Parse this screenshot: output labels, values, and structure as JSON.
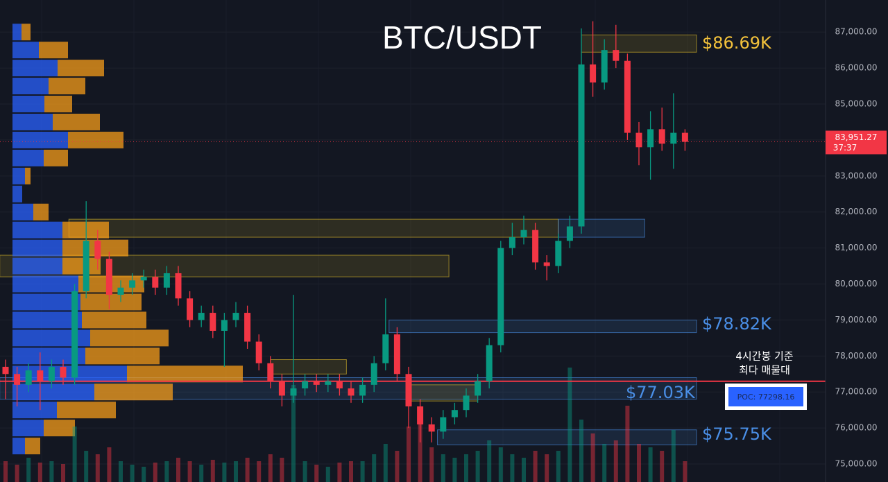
{
  "chart_data": {
    "type": "candlestick",
    "title": "BTC/USDT",
    "ylim": [
      74500,
      87890
    ],
    "yticks": [
      {
        "value": 75000,
        "label": "75,000.00"
      },
      {
        "value": 76000,
        "label": "76,000.00"
      },
      {
        "value": 77000,
        "label": "77,000.00"
      },
      {
        "value": 78000,
        "label": "78,000.00"
      },
      {
        "value": 79000,
        "label": "79,000.00"
      },
      {
        "value": 80000,
        "label": "80,000.00"
      },
      {
        "value": 81000,
        "label": "81,000.00"
      },
      {
        "value": 82000,
        "label": "82,000.00"
      },
      {
        "value": 83000,
        "label": "83,000.00"
      },
      {
        "value": 84000,
        "label": "84,000.00"
      },
      {
        "value": 85000,
        "label": "85,000.00"
      },
      {
        "value": 86000,
        "label": "86,000.00"
      },
      {
        "value": 87000,
        "label": "87,000.00"
      }
    ],
    "grid": true,
    "up_color": "#089981",
    "down_color": "#f23645",
    "open": [
      77700,
      77500,
      77200,
      77600,
      77300,
      77700,
      77400,
      79800,
      81200,
      80700,
      79700,
      79900,
      80100,
      80200,
      79900,
      80300,
      79600,
      79000,
      79200,
      78700,
      79000,
      79200,
      78400,
      77800,
      77300,
      76900,
      77100,
      77300,
      77200,
      77300,
      77100,
      76900,
      77200,
      77800,
      78600,
      77500,
      76600,
      76100,
      75900,
      76300,
      76500,
      76900,
      77300,
      78300,
      81000,
      81300,
      81500,
      80600,
      80500,
      81200,
      81600,
      86100,
      85600,
      86500,
      86200,
      84200,
      83800,
      84300,
      83900,
      84200
    ],
    "high": [
      77900,
      77700,
      77800,
      78100,
      77900,
      77900,
      80000,
      82300,
      81500,
      80900,
      80100,
      80300,
      80400,
      80400,
      80500,
      80500,
      79800,
      79400,
      79400,
      79200,
      79500,
      79400,
      78600,
      78000,
      77500,
      79700,
      77500,
      77500,
      77500,
      77500,
      77300,
      77400,
      78000,
      79600,
      78800,
      77700,
      76800,
      76300,
      76500,
      76700,
      77100,
      77500,
      78500,
      81200,
      81700,
      81900,
      81700,
      80800,
      81400,
      81900,
      87100,
      87300,
      86800,
      87200,
      86400,
      84500,
      84800,
      84900,
      85300,
      84300
    ],
    "low": [
      76800,
      76600,
      77000,
      76500,
      77100,
      77200,
      77200,
      79600,
      80400,
      79300,
      79500,
      79700,
      79900,
      79700,
      79700,
      79400,
      78800,
      78800,
      78500,
      77700,
      78800,
      78200,
      77600,
      77100,
      76600,
      76700,
      76900,
      77000,
      77000,
      76900,
      76700,
      76700,
      77000,
      77600,
      77300,
      76000,
      75600,
      75600,
      75700,
      76100,
      76300,
      76700,
      77100,
      78100,
      80800,
      81100,
      80400,
      80100,
      80300,
      81000,
      81400,
      85200,
      85400,
      86000,
      84000,
      83300,
      82900,
      83700,
      83200,
      83700
    ],
    "close": [
      77500,
      77200,
      77600,
      77300,
      77700,
      77400,
      79800,
      81200,
      80700,
      79700,
      79900,
      80100,
      80200,
      79900,
      80300,
      79600,
      79000,
      79200,
      78700,
      79000,
      79200,
      78400,
      77800,
      77300,
      76900,
      77100,
      77300,
      77200,
      77300,
      77100,
      76900,
      77200,
      77800,
      78600,
      77500,
      76600,
      76100,
      75900,
      76300,
      76500,
      76900,
      77300,
      78300,
      81000,
      81300,
      81500,
      80600,
      80500,
      81200,
      81600,
      86100,
      85600,
      86500,
      86200,
      84200,
      83800,
      84300,
      83900,
      84200,
      83950
    ],
    "volume": [
      30,
      25,
      35,
      28,
      30,
      26,
      80,
      45,
      40,
      50,
      30,
      25,
      22,
      28,
      30,
      35,
      30,
      25,
      32,
      28,
      30,
      35,
      30,
      40,
      35,
      140,
      30,
      25,
      22,
      28,
      30,
      30,
      40,
      55,
      45,
      80,
      90,
      50,
      40,
      35,
      40,
      45,
      60,
      50,
      40,
      35,
      45,
      40,
      45,
      165,
      90,
      70,
      55,
      60,
      110,
      55,
      50,
      45,
      75,
      30
    ],
    "volume_profile": {
      "levels": [
        87000,
        86500,
        86000,
        85500,
        85000,
        84500,
        84000,
        83500,
        83000,
        82500,
        82000,
        81500,
        81000,
        80500,
        80000,
        79500,
        79000,
        78500,
        78000,
        77500,
        77000,
        76500,
        76000,
        75500
      ],
      "buy": [
        13,
        38,
        65,
        52,
        46,
        58,
        80,
        45,
        18,
        14,
        30,
        72,
        72,
        72,
        95,
        98,
        100,
        112,
        105,
        165,
        118,
        64,
        45,
        18
      ],
      "sell": [
        13,
        42,
        67,
        53,
        40,
        68,
        80,
        35,
        8,
        0,
        22,
        67,
        95,
        55,
        95,
        88,
        93,
        113,
        107,
        167,
        113,
        85,
        45,
        22
      ],
      "buy_color": "#2962ff",
      "sell_color": "#f59c1a"
    },
    "zones": [
      {
        "start": 50,
        "end": 60,
        "range": [
          86440,
          86920
        ],
        "color": "#e6c229"
      },
      {
        "start": 5.5,
        "end": 48,
        "range": [
          81300,
          81800
        ],
        "color": "#e6c229"
      },
      {
        "start": 48,
        "end": 55.5,
        "range": [
          81300,
          81800
        ],
        "color": "#4a8fe7"
      },
      {
        "start": -0.5,
        "end": 38.5,
        "range": [
          80200,
          80800
        ],
        "color": "#e6c229"
      },
      {
        "start": 33.3,
        "end": 60,
        "range": [
          78650,
          79000
        ],
        "color": "#4a8fe7"
      },
      {
        "start": 23,
        "end": 29.6,
        "range": [
          77500,
          77900
        ],
        "color": "#e6c229"
      },
      {
        "start": -0.5,
        "end": 60,
        "range": [
          76800,
          77400
        ],
        "color": "#4a8fe7"
      },
      {
        "start": 35,
        "end": 41,
        "range": [
          76750,
          77200
        ],
        "color": "#e6c229"
      },
      {
        "start": 37.5,
        "end": 60,
        "range": [
          75530,
          75950
        ],
        "color": "#4a8fe7"
      }
    ],
    "poc": 77298.16,
    "poc_label": "POC: 77298.16",
    "last_price": 83951.27,
    "last_price_label": "83,951.27",
    "countdown": "37:37",
    "annotations": [
      "$86.69K",
      "$78.82K",
      "$77.03K",
      "$75.75K",
      "4시간봉 기준",
      "최다 매물대"
    ]
  }
}
